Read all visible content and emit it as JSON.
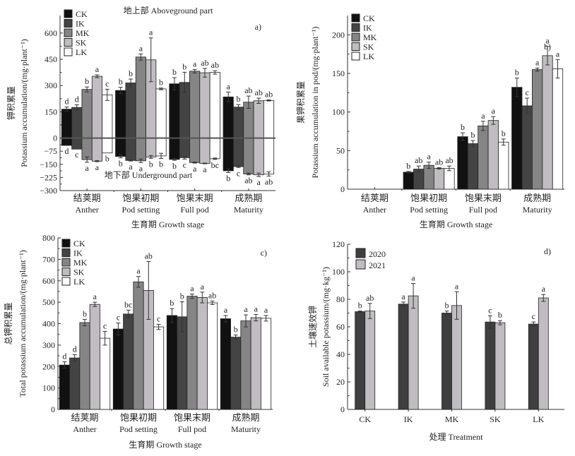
{
  "colors": {
    "CK": "#111111",
    "IK": "#444444",
    "MK": "#858585",
    "SK": "#c0bcc2",
    "LK": "#ffffff",
    "y2020": "#3f3f3f",
    "y2021": "#c0bcc2",
    "axis": "#333333",
    "zero_line": "#555555",
    "error": "#333333"
  },
  "chart_data": [
    {
      "id": "a",
      "type": "bar",
      "panel_label": "a)",
      "title_top": "地上部   Aboveground part",
      "title_bottom": "地下部 Underground part",
      "ylabel_cn": "钾积累量",
      "ylabel_en": "Potassium accumulation/(mg·plant⁻¹)",
      "xlabel": "生育期 Growth stage",
      "categories_cn": [
        "结荚期",
        "饱果初期",
        "饱果末期",
        "成熟期"
      ],
      "categories_en": [
        "Anther",
        "Pod setting",
        "Full pod",
        "Maturity"
      ],
      "ylim": [
        -300,
        700
      ],
      "yticks": [
        -300,
        -225,
        -150,
        -75,
        0,
        150,
        300,
        450,
        600
      ],
      "ytick_labels": [
        "−300",
        "−225",
        "−150",
        "−75",
        "0",
        "150",
        "300",
        "450",
        "600"
      ],
      "legend": [
        "CK",
        "IK",
        "MK",
        "SK",
        "LK"
      ],
      "legend_position": "top-left",
      "series_above": [
        {
          "name": "CK",
          "values": [
            165,
            272,
            310,
            235
          ],
          "errors": [
            12,
            18,
            35,
            28
          ],
          "letters": [
            "d",
            "b",
            "b",
            "a"
          ]
        },
        {
          "name": "IK",
          "values": [
            175,
            315,
            318,
            177
          ],
          "errors": [
            15,
            22,
            58,
            14
          ],
          "letters": [
            "d",
            "b",
            "b",
            "b"
          ]
        },
        {
          "name": "MK",
          "values": [
            278,
            463,
            382,
            205
          ],
          "errors": [
            14,
            18,
            10,
            35
          ],
          "letters": [
            "b",
            "a",
            "a",
            "ab"
          ]
        },
        {
          "name": "SK",
          "values": [
            353,
            447,
            373,
            213
          ],
          "errors": [
            8,
            125,
            25,
            15
          ],
          "letters": [
            "a",
            "a",
            "ab",
            "ab"
          ]
        },
        {
          "name": "LK",
          "values": [
            247,
            281,
            375,
            215
          ],
          "errors": [
            32,
            5,
            10,
            3
          ],
          "letters": [
            "c",
            "b",
            "ab",
            "ab"
          ]
        }
      ],
      "series_below": [
        {
          "name": "CK",
          "values": [
            -42,
            -105,
            -122,
            -187
          ],
          "errors": [
            0,
            8,
            5,
            10
          ],
          "letters": [
            "d",
            "b",
            "b",
            "b"
          ]
        },
        {
          "name": "IK",
          "values": [
            -63,
            -128,
            -112,
            -163
          ],
          "errors": [
            0,
            3,
            8,
            5
          ],
          "letters": [
            "c",
            "a",
            "c",
            "c"
          ]
        },
        {
          "name": "MK",
          "values": [
            -123,
            -130,
            -140,
            -205
          ],
          "errors": [
            15,
            10,
            3,
            5
          ],
          "letters": [
            "a",
            "a",
            "a",
            "ab"
          ]
        },
        {
          "name": "SK",
          "values": [
            -132,
            -108,
            -145,
            -210
          ],
          "errors": [
            3,
            8,
            2,
            10
          ],
          "letters": [
            "a",
            "b",
            "a",
            "a"
          ]
        },
        {
          "name": "LK",
          "values": [
            -85,
            -102,
            -118,
            -205
          ],
          "errors": [
            0,
            15,
            4,
            12
          ],
          "letters": [
            "b",
            "b",
            "bc",
            "ab"
          ]
        }
      ]
    },
    {
      "id": "b",
      "type": "bar",
      "panel_label": "b)",
      "ylabel_cn": "果钾积累量",
      "ylabel_en": "Potassium accumulation in pod/(mg·plant⁻¹)",
      "xlabel": "生育期 Growth stage",
      "categories_cn": [
        "结荚期",
        "饱果初期",
        "饱果末期",
        "成熟期"
      ],
      "categories_en": [
        "Anther",
        "Pod setting",
        "Full pod",
        "Maturity"
      ],
      "ylim": [
        0,
        225
      ],
      "yticks": [
        0,
        50,
        100,
        150,
        200
      ],
      "legend": [
        "CK",
        "IK",
        "MK",
        "SK",
        "LK"
      ],
      "legend_position": "top-left",
      "series": [
        {
          "name": "CK",
          "values": [
            0,
            22,
            68,
            132
          ],
          "errors": [
            0,
            1,
            5,
            12
          ],
          "letters": [
            "",
            "b",
            "b",
            "b"
          ]
        },
        {
          "name": "IK",
          "values": [
            0,
            26,
            59,
            108
          ],
          "errors": [
            0,
            4,
            4,
            10
          ],
          "letters": [
            "",
            "ab",
            "b",
            "c"
          ]
        },
        {
          "name": "MK",
          "values": [
            0,
            31,
            82,
            155
          ],
          "errors": [
            0,
            4,
            6,
            2
          ],
          "letters": [
            "",
            "a",
            "a",
            "a"
          ]
        },
        {
          "name": "SK",
          "values": [
            0,
            27,
            89,
            173
          ],
          "errors": [
            0,
            1,
            5,
            12
          ],
          "letters": [
            "",
            "ab",
            "a",
            "a"
          ]
        },
        {
          "name": "LK",
          "values": [
            0,
            27,
            61,
            156
          ],
          "errors": [
            0,
            3,
            4,
            12
          ],
          "letters": [
            "",
            "ab",
            "b",
            "a"
          ]
        }
      ]
    },
    {
      "id": "c",
      "type": "bar",
      "panel_label": "c)",
      "ylabel_cn": "总钾积累量",
      "ylabel_en": "Total potassium accumulation/(mg·plant⁻¹)",
      "xlabel": "生育期 Growth stage",
      "categories_cn": [
        "结荚期",
        "饱果初期",
        "饱果末期",
        "成熟期"
      ],
      "categories_en": [
        "Anther",
        "Pod setting",
        "Full pod",
        "Maturity"
      ],
      "ylim": [
        0,
        800
      ],
      "yticks": [
        0,
        100,
        200,
        300,
        400,
        500,
        600,
        700,
        800
      ],
      "legend": [
        "CK",
        "IK",
        "MK",
        "SK",
        "LK"
      ],
      "legend_position": "top-left",
      "series": [
        {
          "name": "CK",
          "values": [
            207,
            375,
            438,
            423
          ],
          "errors": [
            15,
            28,
            32,
            15
          ],
          "letters": [
            "d",
            "c",
            "b",
            "a"
          ]
        },
        {
          "name": "IK",
          "values": [
            240,
            445,
            432,
            337
          ],
          "errors": [
            15,
            18,
            70,
            10
          ],
          "letters": [
            "d",
            "bc",
            "b",
            "b"
          ]
        },
        {
          "name": "MK",
          "values": [
            405,
            595,
            528,
            413
          ],
          "errors": [
            15,
            25,
            10,
            28
          ],
          "letters": [
            "b",
            "a",
            "a",
            "a"
          ]
        },
        {
          "name": "SK",
          "values": [
            490,
            555,
            522,
            428
          ],
          "errors": [
            10,
            135,
            25,
            15
          ],
          "letters": [
            "a",
            "ab",
            "a",
            "a"
          ]
        },
        {
          "name": "LK",
          "values": [
            332,
            385,
            497,
            425
          ],
          "errors": [
            32,
            12,
            8,
            13
          ],
          "letters": [
            "c",
            "c",
            "ab",
            "a"
          ]
        }
      ]
    },
    {
      "id": "d",
      "type": "bar",
      "panel_label": "d)",
      "ylabel_cn": "土壤速效钾",
      "ylabel_en": "Soil available potassium/(mg·kg⁻¹)",
      "xlabel": "处理    Treatment",
      "categories": [
        "CK",
        "IK",
        "MK",
        "SK",
        "LK"
      ],
      "ylim": [
        0,
        120
      ],
      "yticks": [
        0,
        20,
        40,
        60,
        80,
        100,
        120
      ],
      "legend": [
        "2020",
        "2021"
      ],
      "legend_position": "top-left",
      "series": [
        {
          "name": "2020",
          "values": [
            71,
            76.5,
            70,
            63.5,
            62
          ],
          "errors": [
            0.5,
            1.5,
            1.5,
            4.5,
            1.5
          ],
          "letters": [
            "b",
            "a",
            "b",
            "c",
            "c"
          ]
        },
        {
          "name": "2021",
          "values": [
            71.5,
            82.5,
            75.5,
            63,
            81
          ],
          "errors": [
            5.5,
            9,
            10,
            1.5,
            2.5
          ],
          "letters": [
            "ab",
            "a",
            "a",
            "b",
            "a"
          ]
        }
      ]
    }
  ]
}
